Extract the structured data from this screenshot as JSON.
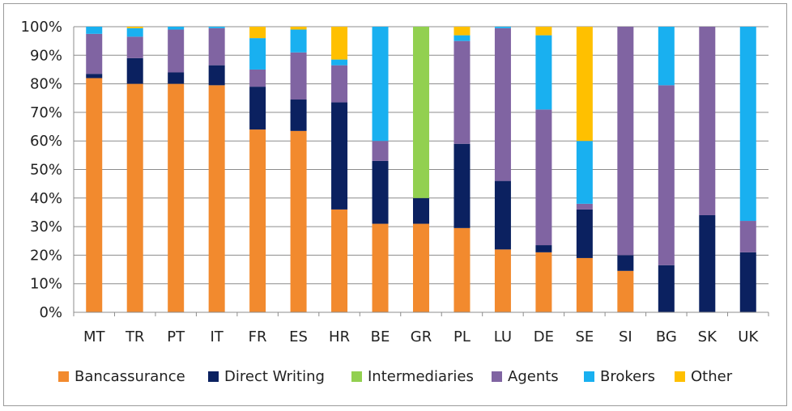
{
  "chart_data": {
    "type": "bar",
    "stacked": true,
    "categories": [
      "MT",
      "TR",
      "PT",
      "IT",
      "FR",
      "ES",
      "HR",
      "BE",
      "GR",
      "PL",
      "LU",
      "DE",
      "SE",
      "SI",
      "BG",
      "SK",
      "UK"
    ],
    "ylim": [
      0,
      100
    ],
    "yticks": [
      "0%",
      "10%",
      "20%",
      "30%",
      "40%",
      "50%",
      "60%",
      "70%",
      "80%",
      "90%",
      "100%"
    ],
    "grid": true,
    "legend_position": "bottom",
    "series": [
      {
        "name": "Bancassurance",
        "color": "#F28A2E",
        "values": [
          82,
          80,
          80,
          79.5,
          64,
          63.5,
          36,
          31,
          31,
          29.5,
          22,
          21,
          19,
          14.5,
          0,
          0,
          0
        ]
      },
      {
        "name": "Direct Writing",
        "color": "#0B2160",
        "values": [
          1.5,
          9,
          4,
          7,
          15,
          11,
          37.5,
          22,
          9,
          29.5,
          24,
          2.5,
          17,
          5.5,
          16.5,
          34,
          21
        ]
      },
      {
        "name": "Intermediaries",
        "color": "#92D050",
        "values": [
          0,
          0,
          0,
          0,
          0,
          0,
          0,
          0,
          60,
          0,
          0,
          0,
          0,
          0,
          0,
          0,
          0
        ]
      },
      {
        "name": "Agents",
        "color": "#8064A2",
        "values": [
          14,
          7.5,
          15,
          13,
          6,
          16.5,
          13,
          7,
          0,
          36,
          53.5,
          47.5,
          2,
          80,
          63,
          66,
          11
        ]
      },
      {
        "name": "Brokers",
        "color": "#19B0F0",
        "values": [
          2.5,
          3,
          1,
          0.5,
          11,
          8,
          2,
          40,
          0,
          2,
          0.5,
          26,
          22,
          0,
          20.5,
          0,
          68
        ]
      },
      {
        "name": "Other",
        "color": "#FFC000",
        "values": [
          0,
          0.5,
          0,
          0,
          4,
          1,
          11.5,
          0,
          0,
          3,
          0,
          3,
          40,
          0,
          0,
          0,
          0
        ]
      }
    ]
  }
}
